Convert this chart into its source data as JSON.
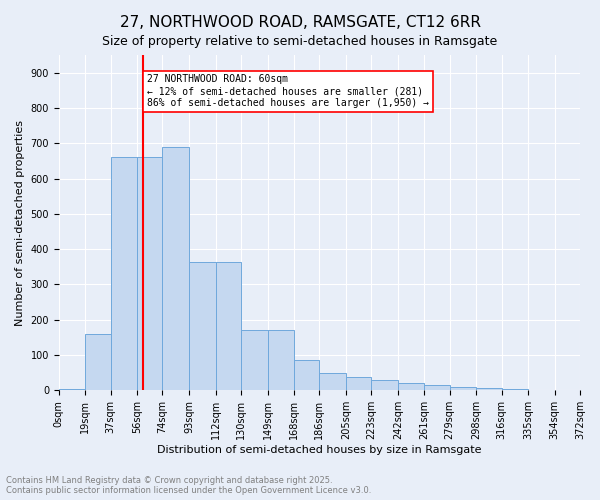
{
  "title1": "27, NORTHWOOD ROAD, RAMSGATE, CT12 6RR",
  "title2": "Size of property relative to semi-detached houses in Ramsgate",
  "xlabel": "Distribution of semi-detached houses by size in Ramsgate",
  "ylabel": "Number of semi-detached properties",
  "bar_values": [
    5,
    160,
    660,
    660,
    690,
    365,
    365,
    170,
    170,
    85,
    48,
    38,
    30,
    20,
    14,
    10,
    7,
    4,
    2,
    1
  ],
  "bin_labels": [
    "0sqm",
    "19sqm",
    "37sqm",
    "56sqm",
    "74sqm",
    "93sqm",
    "112sqm",
    "130sqm",
    "149sqm",
    "168sqm",
    "186sqm",
    "205sqm",
    "223sqm",
    "242sqm",
    "261sqm",
    "279sqm",
    "298sqm",
    "316sqm",
    "335sqm",
    "354sqm",
    "372sqm"
  ],
  "bar_color": "#c5d8f0",
  "bar_edge_color": "#6fa8dc",
  "property_line_x": 60,
  "property_line_color": "red",
  "annotation_text": "27 NORTHWOOD ROAD: 60sqm\n← 12% of semi-detached houses are smaller (281)\n86% of semi-detached houses are larger (1,950) →",
  "annotation_box_color": "white",
  "annotation_box_edge_color": "red",
  "ylim": [
    0,
    950
  ],
  "yticks": [
    0,
    100,
    200,
    300,
    400,
    500,
    600,
    700,
    800,
    900
  ],
  "background_color": "#e8eef8",
  "footer_text": "Contains HM Land Registry data © Crown copyright and database right 2025.\nContains public sector information licensed under the Open Government Licence v3.0.",
  "title1_fontsize": 11,
  "title2_fontsize": 9,
  "axis_fontsize": 8,
  "tick_fontsize": 7,
  "bin_edges": [
    0,
    19,
    37,
    56,
    74,
    93,
    112,
    130,
    149,
    168,
    186,
    205,
    223,
    242,
    261,
    279,
    298,
    316,
    335,
    354,
    372
  ]
}
